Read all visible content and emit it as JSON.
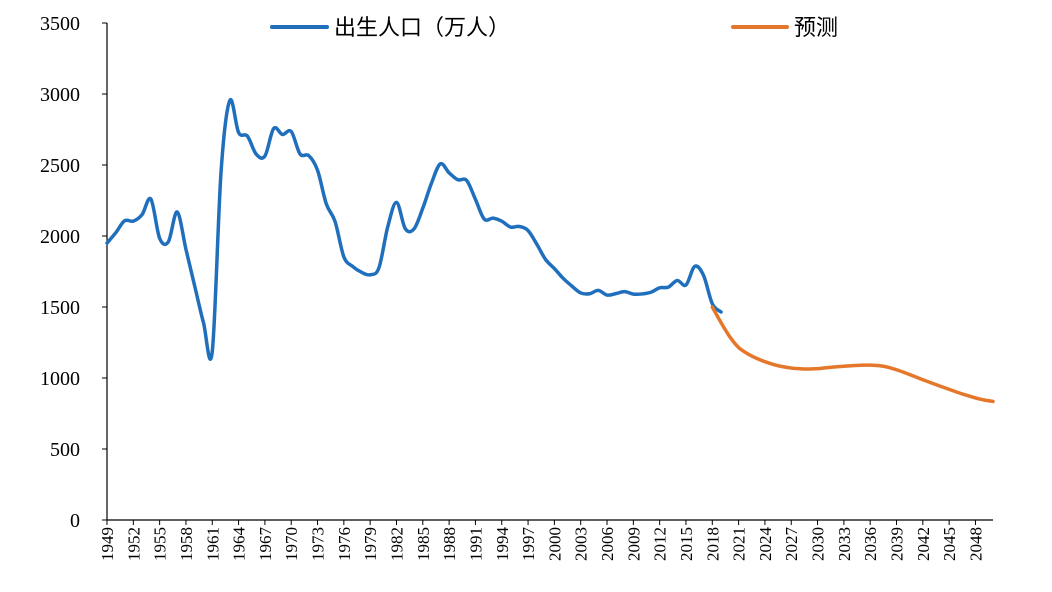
{
  "chart_data": {
    "type": "line",
    "title": "",
    "xlabel": "",
    "ylabel": "",
    "ylim": [
      0,
      3500
    ],
    "yticks": [
      0,
      500,
      1000,
      1500,
      2000,
      2500,
      3000,
      3500
    ],
    "xticks": [
      "1949",
      "1952",
      "1955",
      "1958",
      "1961",
      "1964",
      "1967",
      "1970",
      "1973",
      "1976",
      "1979",
      "1982",
      "1985",
      "1988",
      "1991",
      "1994",
      "1997",
      "2000",
      "2003",
      "2006",
      "2009",
      "2012",
      "2015",
      "2018",
      "2021",
      "2024",
      "2027",
      "2030",
      "2033",
      "2036",
      "2039",
      "2042",
      "2045",
      "2048"
    ],
    "legend_position": "top",
    "grid": false,
    "series": [
      {
        "name": "出生人口（万人）",
        "color": "#1f6fbd",
        "x": [
          1949,
          1950,
          1951,
          1952,
          1953,
          1954,
          1955,
          1956,
          1957,
          1958,
          1959,
          1960,
          1961,
          1962,
          1963,
          1964,
          1965,
          1966,
          1967,
          1968,
          1969,
          1970,
          1971,
          1972,
          1973,
          1974,
          1975,
          1976,
          1977,
          1978,
          1979,
          1980,
          1981,
          1982,
          1983,
          1984,
          1985,
          1986,
          1987,
          1988,
          1989,
          1990,
          1991,
          1992,
          1993,
          1994,
          1995,
          1996,
          1997,
          1998,
          1999,
          2000,
          2001,
          2002,
          2003,
          2004,
          2005,
          2006,
          2007,
          2008,
          2009,
          2010,
          2011,
          2012,
          2013,
          2014,
          2015,
          2016,
          2017,
          2018,
          2019
        ],
        "values": [
          1950,
          2023,
          2107,
          2105,
          2151,
          2260,
          1984,
          1960,
          2169,
          1906,
          1647,
          1389,
          1187,
          2451,
          2954,
          2729,
          2704,
          2577,
          2563,
          2757,
          2715,
          2736,
          2578,
          2566,
          2463,
          2226,
          2102,
          1853,
          1786,
          1745,
          1727,
          1776,
          2064,
          2237,
          2052,
          2050,
          2196,
          2374,
          2508,
          2445,
          2396,
          2391,
          2258,
          2119,
          2126,
          2104,
          2063,
          2067,
          2038,
          1942,
          1834,
          1771,
          1702,
          1647,
          1599,
          1593,
          1617,
          1584,
          1594,
          1608,
          1591,
          1592,
          1604,
          1635,
          1640,
          1687,
          1655,
          1786,
          1723,
          1523,
          1465
        ]
      },
      {
        "name": "预测",
        "color": "#e5772a",
        "x": [
          2018,
          2019,
          2020,
          2021,
          2022,
          2023,
          2024,
          2025,
          2026,
          2027,
          2028,
          2029,
          2030,
          2031,
          2032,
          2033,
          2034,
          2035,
          2036,
          2037,
          2038,
          2039,
          2040,
          2041,
          2042,
          2043,
          2044,
          2045,
          2046,
          2047,
          2048,
          2049,
          2050
        ],
        "values": [
          1500,
          1390,
          1290,
          1215,
          1172,
          1140,
          1115,
          1095,
          1080,
          1070,
          1065,
          1063,
          1066,
          1072,
          1078,
          1083,
          1087,
          1090,
          1091,
          1087,
          1076,
          1058,
          1036,
          1012,
          988,
          965,
          942,
          920,
          898,
          878,
          860,
          845,
          835
        ]
      }
    ]
  }
}
